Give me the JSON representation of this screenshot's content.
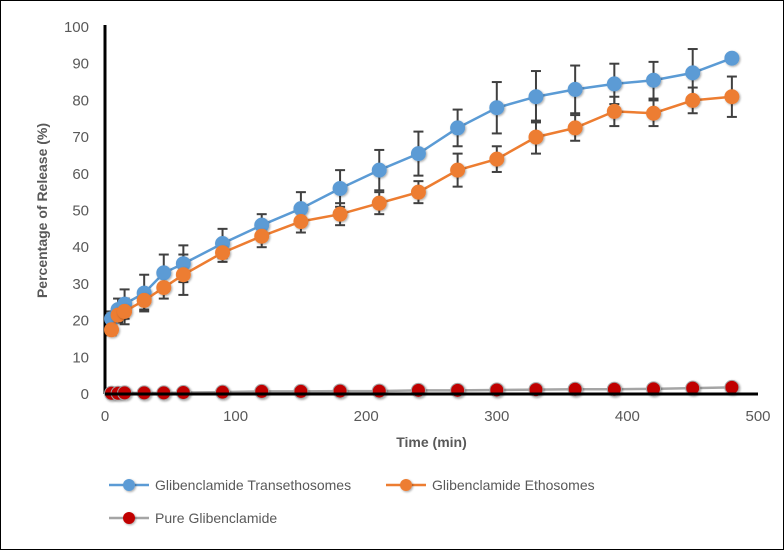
{
  "chart_data": {
    "type": "line",
    "title": "",
    "xlabel": "Time (min)",
    "ylabel": "Percentage of Release (%)",
    "xlim": [
      0,
      500
    ],
    "ylim": [
      0,
      100
    ],
    "xticks": [
      0,
      100,
      200,
      300,
      400,
      500
    ],
    "yticks": [
      0,
      10,
      20,
      30,
      40,
      50,
      60,
      70,
      80,
      90,
      100
    ],
    "grid": false,
    "legend": "bottom",
    "x": [
      5,
      10,
      15,
      30,
      45,
      60,
      90,
      120,
      150,
      180,
      210,
      240,
      270,
      300,
      330,
      360,
      390,
      420,
      450,
      480
    ],
    "series": [
      {
        "name": "Glibenclamide Transethosomes",
        "color": "#5B9BD5",
        "values": [
          20.5,
          23,
          24.5,
          27.5,
          33,
          35.5,
          41,
          46,
          50.5,
          56,
          61,
          65.5,
          72.5,
          78,
          81,
          83,
          84.5,
          85.5,
          87.5,
          91.5
        ],
        "error": [
          2,
          3,
          4,
          5,
          5,
          5,
          4,
          3,
          4.5,
          5,
          5.5,
          6,
          5,
          7,
          7,
          6.5,
          5.5,
          5,
          6.5,
          1
        ]
      },
      {
        "name": "Glibenclamide Ethosomes",
        "color": "#ED7D31",
        "values": [
          17.5,
          21.5,
          22.5,
          25.5,
          29,
          32.5,
          38.5,
          43,
          47,
          49,
          52,
          55,
          61,
          64,
          70,
          72.5,
          77,
          76.5,
          80,
          81
        ],
        "error": [
          1.5,
          2,
          3.5,
          2.5,
          3,
          5.5,
          2.5,
          3,
          3,
          3,
          3,
          3,
          4.5,
          3.5,
          4.5,
          3.5,
          4,
          3.5,
          3.5,
          5.5
        ]
      },
      {
        "name": "Pure Glibenclamide",
        "color": "#C00000",
        "line_color": "#A5A5A5",
        "values": [
          0.2,
          0.2,
          0.3,
          0.3,
          0.3,
          0.4,
          0.5,
          0.7,
          0.7,
          0.8,
          0.8,
          1.0,
          1.0,
          1.1,
          1.2,
          1.3,
          1.3,
          1.4,
          1.6,
          1.8
        ],
        "error": null
      }
    ]
  }
}
